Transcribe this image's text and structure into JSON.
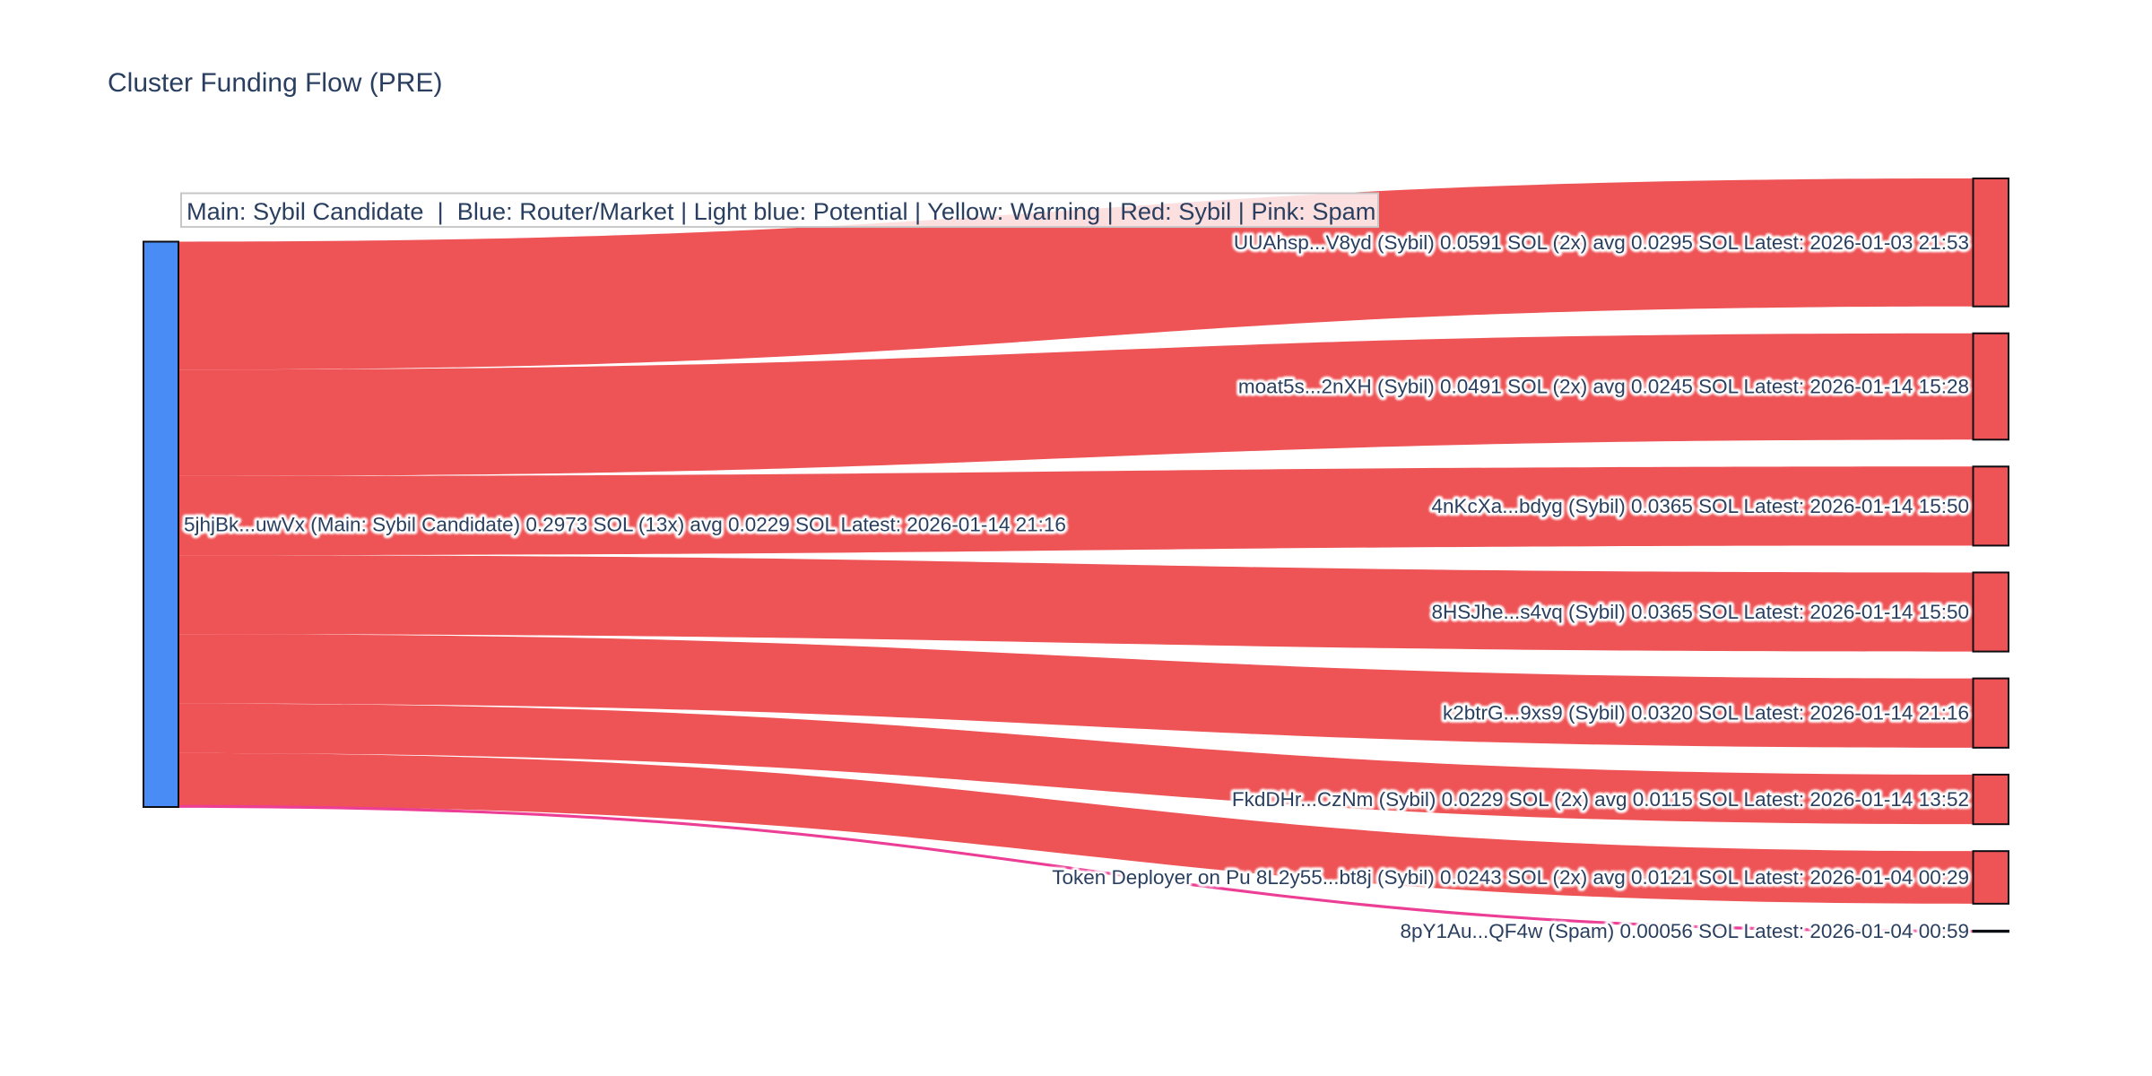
{
  "title": "Cluster Funding Flow (PRE)",
  "legend": {
    "text": "Main: Sybil Candidate  |  Blue: Router/Market | Light blue: Potential | Yellow: Warning | Red: Sybil | Pink: Spam"
  },
  "colors": {
    "background": "#ffffff",
    "text": "#2a3f5f",
    "node_border": "#0d0d14",
    "legend_border": "#c7c7c7",
    "legend_background": "rgba(255,255,255,0.82)",
    "main": "#4a8cf5",
    "sybil": "#ee5356",
    "spam": "#ec3e95"
  },
  "chart_data": {
    "type": "sankey",
    "units": "SOL",
    "source": {
      "label": "5jhjBk...uwVx (Main: Sybil Candidate) 0.2973 SOL (13x) avg 0.0229 SOL Latest: 2026-01-14 21:16",
      "address": "5jhjBk...uwVx",
      "role": "main",
      "total_sol": 0.2973,
      "tx_count": "13x",
      "avg_sol": 0.0229,
      "latest": "2026-01-14 21:16"
    },
    "targets": [
      {
        "label": "UUAhsp...V8yd (Sybil) 0.0591 SOL (2x) avg 0.0295 SOL Latest: 2026-01-03 21:53",
        "address": "UUAhsp...V8yd",
        "value": 0.0591,
        "role": "sybil",
        "latest": "2026-01-03 21:53"
      },
      {
        "label": "moat5s...2nXH (Sybil) 0.0491 SOL (2x) avg 0.0245 SOL Latest: 2026-01-14 15:28",
        "address": "moat5s...2nXH",
        "value": 0.0491,
        "role": "sybil",
        "latest": "2026-01-14 15:28"
      },
      {
        "label": "4nKcXa...bdyg (Sybil) 0.0365 SOL Latest: 2026-01-14 15:50",
        "address": "4nKcXa...bdyg",
        "value": 0.0365,
        "role": "sybil",
        "latest": "2026-01-14 15:50"
      },
      {
        "label": "8HSJhe...s4vq (Sybil) 0.0365 SOL Latest: 2026-01-14 15:50",
        "address": "8HSJhe...s4vq",
        "value": 0.0365,
        "role": "sybil",
        "latest": "2026-01-14 15:50"
      },
      {
        "label": "k2btrG...9xs9 (Sybil) 0.0320 SOL Latest: 2026-01-14 21:16",
        "address": "k2btrG...9xs9",
        "value": 0.032,
        "role": "sybil",
        "latest": "2026-01-14 21:16"
      },
      {
        "label": "FkdDHr...CzNm (Sybil) 0.0229 SOL (2x) avg 0.0115 SOL Latest: 2026-01-14 13:52",
        "address": "FkdDHr...CzNm",
        "value": 0.0229,
        "role": "sybil",
        "latest": "2026-01-14 13:52"
      },
      {
        "label": "Token Deployer on Pu 8L2y55...bt8j (Sybil) 0.0243 SOL (2x) avg 0.0121 SOL Latest: 2026-01-04 00:29",
        "address": "8L2y55...bt8j",
        "value": 0.0243,
        "role": "sybil",
        "latest": "2026-01-04 00:29"
      },
      {
        "label": "8pY1Au...QF4w (Spam) 0.00056 SOL Latest: 2026-01-04 00:59",
        "address": "8pY1Au...QF4w",
        "value": 0.00056,
        "role": "spam",
        "latest": "2026-01-04 00:59"
      }
    ]
  }
}
